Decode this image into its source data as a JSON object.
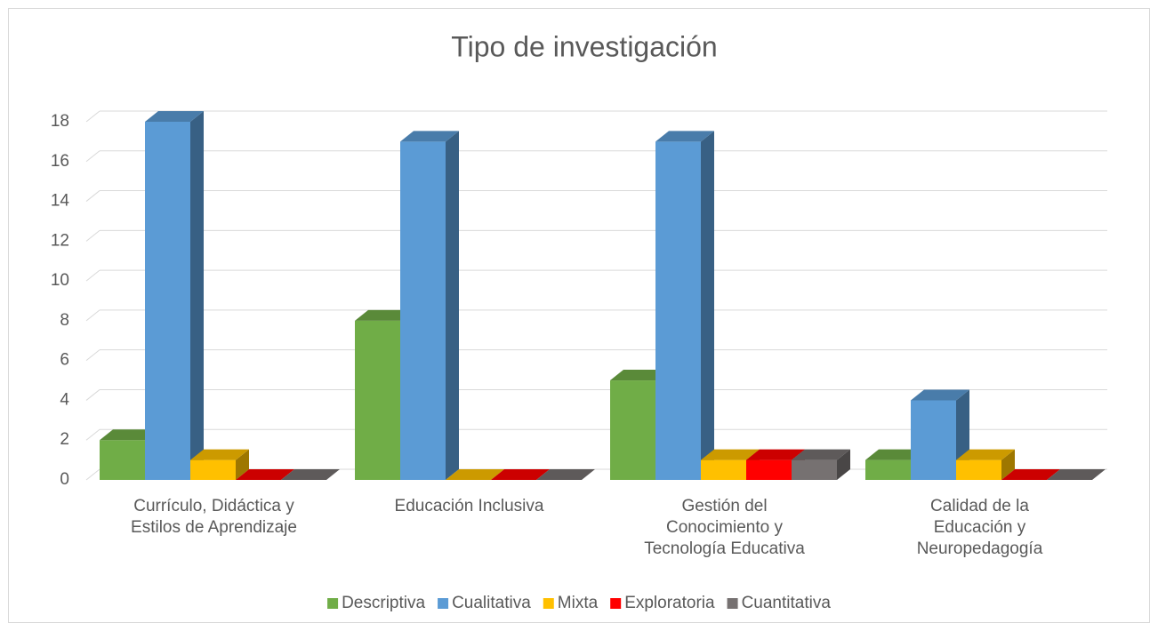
{
  "chart_data": {
    "type": "bar3d",
    "title": "Tipo de investigación",
    "categories": [
      "Currículo, Didáctica y Estilos de Aprendizaje",
      "Educación Inclusiva",
      "Gestión del Conocimiento y Tecnología Educativa",
      "Calidad de la Educación y Neuropedagogía"
    ],
    "series": [
      {
        "name": "Descriptiva",
        "color": "#70ad47",
        "values": [
          2,
          8,
          5,
          1
        ]
      },
      {
        "name": "Cualitativa",
        "color": "#5b9bd5",
        "values": [
          18,
          17,
          17,
          4
        ]
      },
      {
        "name": "Mixta",
        "color": "#ffc000",
        "values": [
          1,
          0,
          1,
          1
        ]
      },
      {
        "name": "Exploratoria",
        "color": "#ff0000",
        "values": [
          0,
          0,
          1,
          0
        ]
      },
      {
        "name": "Cuantitativa",
        "color": "#767171",
        "values": [
          0,
          0,
          1,
          0
        ]
      }
    ],
    "ylim": [
      0,
      18
    ],
    "yticks": [
      0,
      2,
      4,
      6,
      8,
      10,
      12,
      14,
      16,
      18
    ],
    "grid": true,
    "legend": "bottom"
  }
}
